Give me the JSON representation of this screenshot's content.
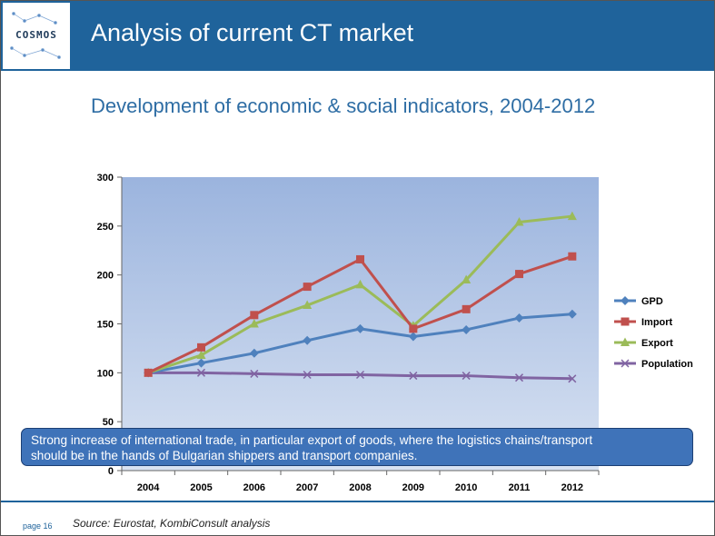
{
  "header": {
    "logo_text": "COSMOS",
    "title": "Analysis of current CT market"
  },
  "subtitle": "Development of economic & social indicators, 2004-2012",
  "colors": {
    "header_bg": "#1f639b",
    "plot_top": "#9bb4de",
    "plot_bottom": "#d8e2f2",
    "gpd": "#4f81bd",
    "import": "#c0504d",
    "export": "#9bbb59",
    "population": "#8064a2",
    "callout_bg": "#3f73b9"
  },
  "chart_data": {
    "type": "line",
    "categories": [
      "2004",
      "2005",
      "2006",
      "2007",
      "2008",
      "2009",
      "2010",
      "2011",
      "2012"
    ],
    "ylim": [
      0,
      300
    ],
    "yticks": [
      0,
      50,
      100,
      150,
      200,
      250,
      300
    ],
    "grid": false,
    "legend_position": "right",
    "series": [
      {
        "name": "GPD",
        "marker": "diamond",
        "values": [
          100,
          110,
          120,
          133,
          145,
          137,
          144,
          156,
          160
        ]
      },
      {
        "name": "Import",
        "marker": "square",
        "values": [
          100,
          126,
          159,
          188,
          216,
          145,
          165,
          201,
          219
        ]
      },
      {
        "name": "Export",
        "marker": "triangle",
        "values": [
          100,
          118,
          150,
          169,
          190,
          148,
          195,
          254,
          260
        ]
      },
      {
        "name": "Population",
        "marker": "x",
        "values": [
          100,
          100,
          99,
          98,
          98,
          97,
          97,
          95,
          94
        ]
      }
    ]
  },
  "callout": {
    "line1": "Strong increase of international trade, in particular export of goods, where the logistics chains/transport",
    "line2": "should be in the hands of Bulgarian shippers and transport companies."
  },
  "footer": {
    "page": "page 16",
    "source": "Source: Eurostat, KombiConsult analysis"
  }
}
